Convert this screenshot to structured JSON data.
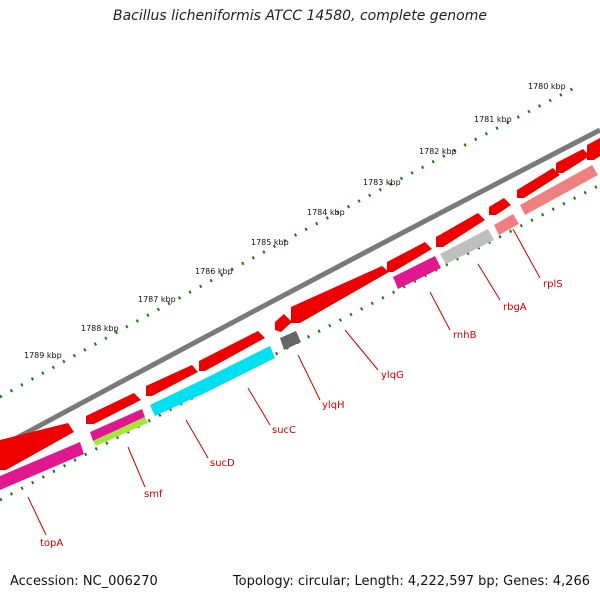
{
  "title": "Bacillus licheniformis ATCC 14580, complete genome",
  "accession": "Accession: NC_006270",
  "summary": "Topology: circular; Length: 4,222,597 bp; Genes: 4,266",
  "kbp_labels": [
    "1780 kbp",
    "1781 kbp",
    "1782 kbp",
    "1783 kbp",
    "1784 kbp",
    "1785 kbp",
    "1786 kbp",
    "1787 kbp",
    "1788 kbp",
    "1789 kbp"
  ],
  "gene_labels": [
    "rplS",
    "rbgA",
    "rnhB",
    "ylqG",
    "ylqH",
    "sucC",
    "sucD",
    "smf",
    "topA"
  ],
  "colors": {
    "backbone": "#7f7f7f",
    "ticks": "#1a7a1a",
    "forward": "#ee0000",
    "magenta": "#e0188f",
    "cyan": "#00e0f0",
    "lime": "#a6e63c",
    "gray": "#bfbfbf",
    "darkgray": "#666666",
    "salmon": "#f08080",
    "label": "#cc0000"
  }
}
